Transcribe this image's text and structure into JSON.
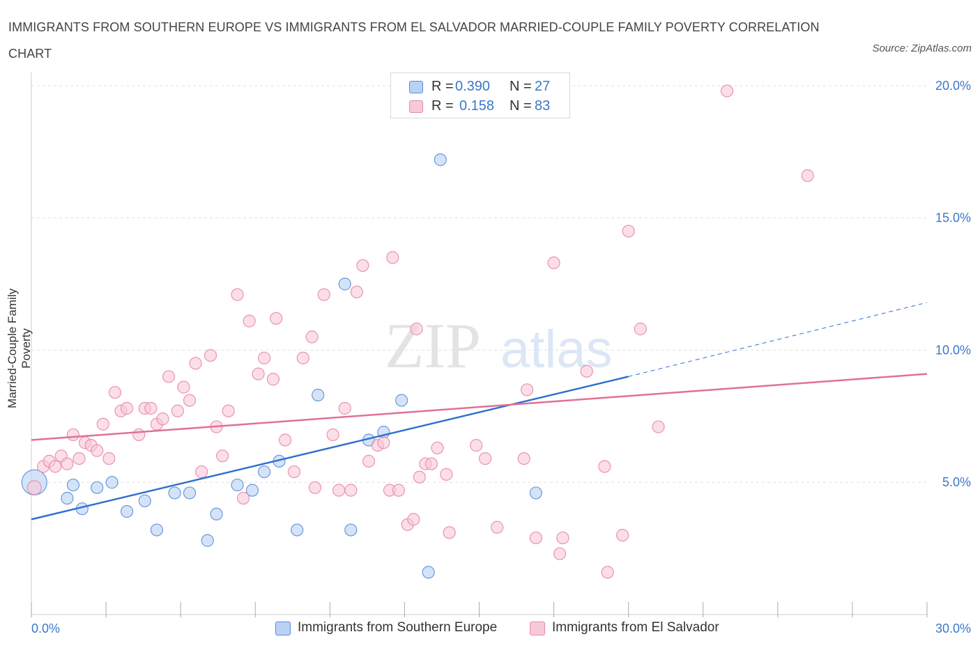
{
  "title": "IMMIGRANTS FROM SOUTHERN EUROPE VS IMMIGRANTS FROM EL SALVADOR MARRIED-COUPLE FAMILY POVERTY CORRELATION CHART",
  "source": "Source: ZipAtlas.com",
  "watermark": {
    "zip": "ZIP",
    "atlas": "atlas"
  },
  "legend": {
    "r_label": "R =",
    "n_label": "N =",
    "rows": [
      {
        "r": "0.390",
        "n": "27"
      },
      {
        "r": "0.158",
        "n": "83"
      }
    ]
  },
  "chart_data": {
    "type": "scatter",
    "title": "IMMIGRANTS FROM SOUTHERN EUROPE VS IMMIGRANTS FROM EL SALVADOR MARRIED-COUPLE FAMILY POVERTY CORRELATION CHART",
    "xlabel": "",
    "ylabel": "Married-Couple Family Poverty",
    "xlim": [
      0,
      30
    ],
    "ylim": [
      0,
      20.5
    ],
    "x_tick_labels": [
      "0.0%",
      "30.0%"
    ],
    "y_ticks": [
      5,
      10,
      15,
      20
    ],
    "y_tick_labels": [
      "5.0%",
      "10.0%",
      "15.0%",
      "20.0%"
    ],
    "grid": true,
    "legend_position": "bottom-center",
    "series": [
      {
        "name": "Immigrants from Southern Europe",
        "color": "#5b8fd6",
        "fill": "#b9d1f3",
        "points": [
          [
            0.1,
            5.0
          ],
          [
            1.4,
            4.9
          ],
          [
            1.2,
            4.4
          ],
          [
            1.7,
            4.0
          ],
          [
            2.2,
            4.8
          ],
          [
            2.7,
            5.0
          ],
          [
            3.2,
            3.9
          ],
          [
            3.8,
            4.3
          ],
          [
            4.2,
            3.2
          ],
          [
            4.8,
            4.6
          ],
          [
            5.3,
            4.6
          ],
          [
            5.9,
            2.8
          ],
          [
            6.2,
            3.8
          ],
          [
            6.9,
            4.9
          ],
          [
            7.4,
            4.7
          ],
          [
            7.8,
            5.4
          ],
          [
            8.3,
            5.8
          ],
          [
            8.9,
            3.2
          ],
          [
            9.6,
            8.3
          ],
          [
            10.5,
            12.5
          ],
          [
            10.7,
            3.2
          ],
          [
            11.3,
            6.6
          ],
          [
            11.8,
            6.9
          ],
          [
            12.4,
            8.1
          ],
          [
            13.3,
            1.6
          ],
          [
            13.7,
            17.2
          ],
          [
            16.9,
            4.6
          ]
        ]
      },
      {
        "name": "Immigrants from El Salvador",
        "color": "#e58aa8",
        "fill": "#f8c8d8",
        "points": [
          [
            0.1,
            4.8
          ],
          [
            0.4,
            5.6
          ],
          [
            0.6,
            5.8
          ],
          [
            0.8,
            5.6
          ],
          [
            1.0,
            6.0
          ],
          [
            1.2,
            5.7
          ],
          [
            1.4,
            6.8
          ],
          [
            1.6,
            5.9
          ],
          [
            1.8,
            6.5
          ],
          [
            2.0,
            6.4
          ],
          [
            2.2,
            6.2
          ],
          [
            2.4,
            7.2
          ],
          [
            2.6,
            5.9
          ],
          [
            2.8,
            8.4
          ],
          [
            3.0,
            7.7
          ],
          [
            3.2,
            7.8
          ],
          [
            3.6,
            6.8
          ],
          [
            3.8,
            7.8
          ],
          [
            4.0,
            7.8
          ],
          [
            4.2,
            7.2
          ],
          [
            4.4,
            7.4
          ],
          [
            4.6,
            9.0
          ],
          [
            4.9,
            7.7
          ],
          [
            5.1,
            8.6
          ],
          [
            5.3,
            8.1
          ],
          [
            5.5,
            9.5
          ],
          [
            5.7,
            5.4
          ],
          [
            6.0,
            9.8
          ],
          [
            6.2,
            7.1
          ],
          [
            6.4,
            6.0
          ],
          [
            6.6,
            7.7
          ],
          [
            6.9,
            12.1
          ],
          [
            7.1,
            4.4
          ],
          [
            7.3,
            11.1
          ],
          [
            7.6,
            9.1
          ],
          [
            7.8,
            9.7
          ],
          [
            8.1,
            8.9
          ],
          [
            8.2,
            11.2
          ],
          [
            8.5,
            6.6
          ],
          [
            8.8,
            5.4
          ],
          [
            9.1,
            9.7
          ],
          [
            9.4,
            10.5
          ],
          [
            9.5,
            4.8
          ],
          [
            9.8,
            12.1
          ],
          [
            10.1,
            6.8
          ],
          [
            10.3,
            4.7
          ],
          [
            10.5,
            7.8
          ],
          [
            10.7,
            4.7
          ],
          [
            10.9,
            12.2
          ],
          [
            11.1,
            13.2
          ],
          [
            11.3,
            5.8
          ],
          [
            11.6,
            6.4
          ],
          [
            11.8,
            6.5
          ],
          [
            12.0,
            4.7
          ],
          [
            12.1,
            13.5
          ],
          [
            12.3,
            4.7
          ],
          [
            12.6,
            3.4
          ],
          [
            12.8,
            3.6
          ],
          [
            12.9,
            10.8
          ],
          [
            13.0,
            5.2
          ],
          [
            13.2,
            5.7
          ],
          [
            13.4,
            5.7
          ],
          [
            13.6,
            6.3
          ],
          [
            13.9,
            5.3
          ],
          [
            14.0,
            3.1
          ],
          [
            14.9,
            6.4
          ],
          [
            15.2,
            5.9
          ],
          [
            15.6,
            3.3
          ],
          [
            16.5,
            5.9
          ],
          [
            16.6,
            8.5
          ],
          [
            16.9,
            2.9
          ],
          [
            17.5,
            13.3
          ],
          [
            17.8,
            2.9
          ],
          [
            17.7,
            2.3
          ],
          [
            18.6,
            9.2
          ],
          [
            19.2,
            5.6
          ],
          [
            19.3,
            1.6
          ],
          [
            19.8,
            3.0
          ],
          [
            20.0,
            14.5
          ],
          [
            20.4,
            10.8
          ],
          [
            21.0,
            7.1
          ],
          [
            23.3,
            19.8
          ],
          [
            26.0,
            16.6
          ]
        ]
      }
    ],
    "trendlines": [
      {
        "series": "Immigrants from Southern Europe",
        "x": [
          0,
          20.0
        ],
        "y": [
          3.6,
          9.0
        ],
        "dashed_extension_to": [
          30,
          11.8
        ]
      },
      {
        "series": "Immigrants from El Salvador",
        "x": [
          0,
          30
        ],
        "y": [
          6.6,
          9.1
        ]
      }
    ]
  }
}
